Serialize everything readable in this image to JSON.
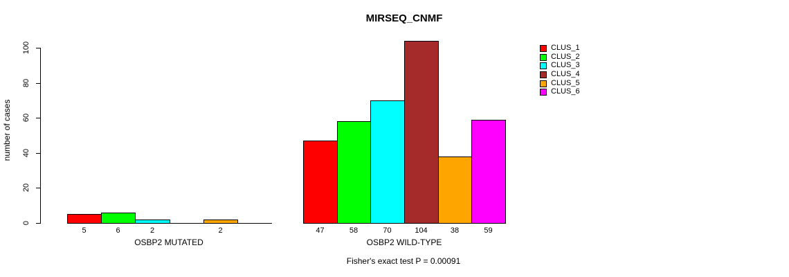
{
  "chart_data": {
    "type": "bar",
    "title": "MIRSEQ_CNMF",
    "ylabel": "number of cases",
    "xlabel": "",
    "ylim": [
      0,
      100
    ],
    "yticks": [
      0,
      20,
      40,
      60,
      80,
      100
    ],
    "grid": false,
    "legend_position": "right",
    "legend": [
      "CLUS_1",
      "CLUS_2",
      "CLUS_3",
      "CLUS_4",
      "CLUS_5",
      "CLUS_6"
    ],
    "series_colors": [
      "#ff0000",
      "#00ff00",
      "#00ffff",
      "#a52a2a",
      "#ffa500",
      "#ff00ff"
    ],
    "groups": [
      {
        "label": "OSBP2 MUTATED",
        "values": [
          5,
          6,
          2,
          0,
          2,
          0
        ]
      },
      {
        "label": "OSBP2 WILD-TYPE",
        "values": [
          47,
          58,
          70,
          104,
          38,
          59
        ]
      }
    ],
    "footnote": "Fisher's exact test P = 0.00091"
  }
}
